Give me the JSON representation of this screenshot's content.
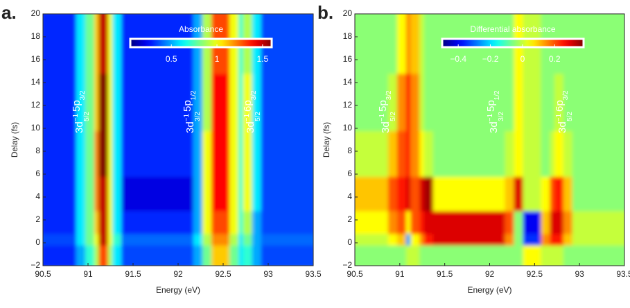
{
  "chart_data": [
    {
      "type": "heatmap",
      "panel_label": "a.",
      "xlabel": "Energy (eV)",
      "ylabel": "Delay (fs)",
      "xlim": [
        90.5,
        93.5
      ],
      "ylim": [
        -2,
        20
      ],
      "xticks": [
        90.5,
        91,
        91.5,
        92,
        92.5,
        93,
        93.5
      ],
      "yticks": [
        {
          "value": -2,
          "label": "−2"
        },
        0,
        2,
        4,
        6,
        8,
        10,
        12,
        14,
        16,
        18,
        20
      ],
      "x_edges": [
        90.5,
        90.9,
        91.0,
        91.1,
        91.15,
        91.25,
        91.3,
        91.4,
        92.2,
        92.3,
        92.4,
        92.6,
        92.7,
        92.75,
        92.85,
        92.95,
        93.5
      ],
      "y_edges": [
        -2,
        0,
        1,
        3,
        6,
        10,
        15,
        20
      ],
      "z": [
        [
          0.3,
          0.5,
          0.7,
          0.9,
          1.3,
          0.9,
          0.6,
          0.35,
          0.5,
          0.8,
          1.1,
          0.8,
          0.6,
          0.7,
          0.5,
          0.35
        ],
        [
          0.35,
          0.6,
          0.8,
          1.0,
          1.5,
          1.0,
          0.7,
          0.4,
          0.6,
          0.9,
          1.2,
          0.9,
          0.6,
          0.8,
          0.5,
          0.4
        ],
        [
          0.3,
          0.6,
          0.8,
          1.1,
          1.5,
          1.0,
          0.6,
          0.3,
          0.5,
          1.0,
          1.3,
          1.0,
          0.7,
          0.9,
          0.5,
          0.35
        ],
        [
          0.3,
          0.6,
          0.8,
          1.2,
          1.5,
          1.0,
          0.6,
          0.2,
          0.5,
          1.0,
          1.4,
          1.0,
          0.7,
          1.0,
          0.6,
          0.35
        ],
        [
          0.3,
          0.6,
          0.8,
          1.2,
          1.6,
          1.0,
          0.6,
          0.3,
          0.5,
          1.0,
          1.4,
          1.0,
          0.7,
          1.0,
          0.6,
          0.35
        ],
        [
          0.3,
          0.6,
          0.8,
          1.1,
          1.6,
          1.0,
          0.6,
          0.3,
          0.5,
          0.9,
          1.4,
          1.0,
          0.7,
          1.0,
          0.6,
          0.35
        ],
        [
          0.3,
          0.6,
          0.8,
          1.1,
          1.5,
          1.0,
          0.6,
          0.3,
          0.5,
          0.9,
          1.3,
          1.0,
          0.7,
          0.9,
          0.6,
          0.35
        ]
      ],
      "colorbar": {
        "label": "Absorbance",
        "lim": [
          0.05,
          1.6
        ],
        "ticks": [
          0.5,
          1,
          1.5
        ]
      },
      "annotations": [
        [
          "3d",
          "−1",
          "5/2",
          "5p",
          "3/2"
        ],
        [
          "3d",
          "−1",
          "3/2",
          "5p",
          "1/2"
        ],
        [
          "3d",
          "−1",
          "5/2",
          "6p",
          "3/2"
        ]
      ]
    },
    {
      "type": "heatmap",
      "panel_label": "b.",
      "xlabel": "Energy (eV)",
      "ylabel": "Delay (fs)",
      "xlim": [
        90.5,
        93.5
      ],
      "ylim": [
        -2,
        20
      ],
      "xticks": [
        90.5,
        91,
        91.5,
        92,
        92.5,
        93,
        93.5
      ],
      "yticks": [
        {
          "value": -2,
          "label": "−2"
        },
        0,
        2,
        4,
        6,
        8,
        10,
        12,
        14,
        16,
        18,
        20
      ],
      "x_edges": [
        90.5,
        90.9,
        91.0,
        91.1,
        91.15,
        91.25,
        91.3,
        91.4,
        92.2,
        92.3,
        92.4,
        92.6,
        92.7,
        92.75,
        92.85,
        92.95,
        93.5
      ],
      "y_edges": [
        -2,
        0,
        1,
        3,
        6,
        10,
        15,
        20
      ],
      "z": [
        [
          -0.05,
          -0.05,
          -0.05,
          0,
          0,
          -0.05,
          -0.05,
          -0.05,
          -0.05,
          -0.05,
          0.05,
          0,
          0,
          0,
          -0.05,
          -0.05
        ],
        [
          0,
          0.05,
          0.1,
          -0.25,
          0.05,
          0.15,
          0.25,
          0.3,
          0.15,
          -0.05,
          -0.35,
          0.15,
          0.25,
          0.25,
          0.1,
          0
        ],
        [
          0.05,
          0.15,
          0.2,
          0.05,
          0.2,
          0.25,
          0.3,
          0.3,
          0.2,
          -0.05,
          -0.4,
          0.1,
          0.3,
          0.3,
          0.15,
          0
        ],
        [
          0.1,
          0.2,
          0.25,
          0.3,
          0.2,
          0.3,
          0.35,
          0.05,
          0.1,
          0.3,
          0,
          0.05,
          0.2,
          0.25,
          0.1,
          -0.05
        ],
        [
          0,
          0.1,
          0.2,
          0.25,
          0.15,
          0.05,
          0,
          -0.05,
          0,
          0.05,
          0,
          -0.05,
          0,
          0.05,
          0,
          -0.05
        ],
        [
          -0.05,
          0,
          0.15,
          0.25,
          0.15,
          0,
          -0.05,
          -0.05,
          -0.05,
          0.05,
          0,
          -0.05,
          -0.05,
          0,
          -0.05,
          -0.05
        ],
        [
          -0.05,
          -0.05,
          0.05,
          0.15,
          0.1,
          0,
          -0.05,
          -0.05,
          -0.05,
          0.05,
          0,
          -0.05,
          -0.05,
          -0.05,
          -0.05,
          -0.05
        ]
      ],
      "colorbar": {
        "label": "Differential absorbance",
        "lim": [
          -0.5,
          0.38
        ],
        "ticks": [
          {
            "value": -0.4,
            "label": "−0.4"
          },
          {
            "value": -0.2,
            "label": "−0.2"
          },
          0,
          0.2
        ]
      },
      "annotations": [
        [
          "3d",
          "−1",
          "5/2",
          "5p",
          "3/2"
        ],
        [
          "3d",
          "−1",
          "3/2",
          "5p",
          "1/2"
        ],
        [
          "3d",
          "−1",
          "5/2",
          "6p",
          "3/2"
        ]
      ]
    }
  ]
}
